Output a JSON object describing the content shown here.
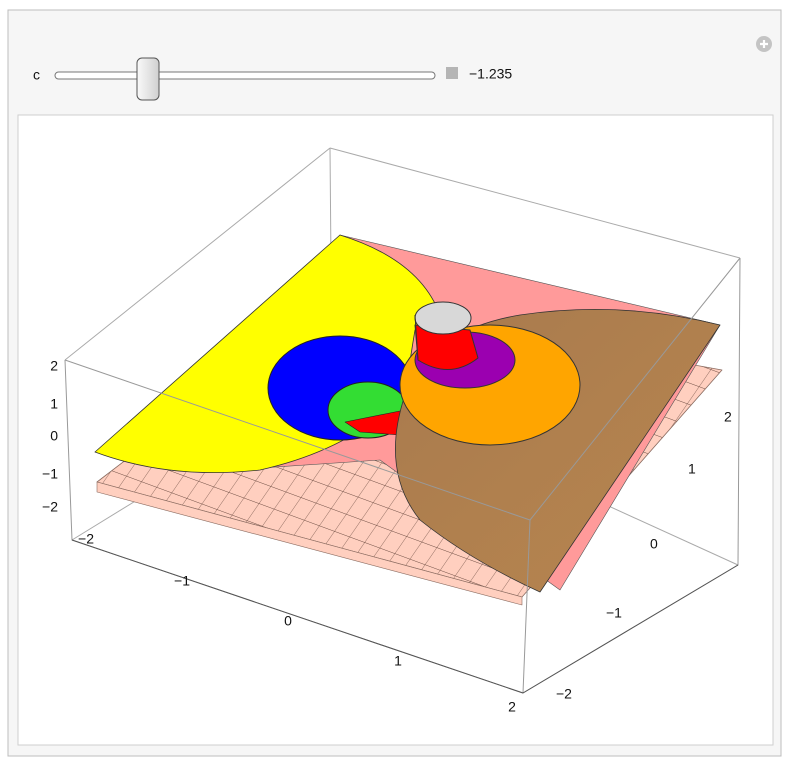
{
  "control": {
    "label": "c",
    "value": "−1.235"
  },
  "plot": {
    "z_ticks": [
      "2",
      "1",
      "0",
      "−1",
      "−2"
    ],
    "x_ticks": [
      "−2",
      "−1",
      "0",
      "1",
      "2"
    ],
    "y_ticks": [
      "2",
      "1",
      "0",
      "−1",
      "−2"
    ]
  }
}
